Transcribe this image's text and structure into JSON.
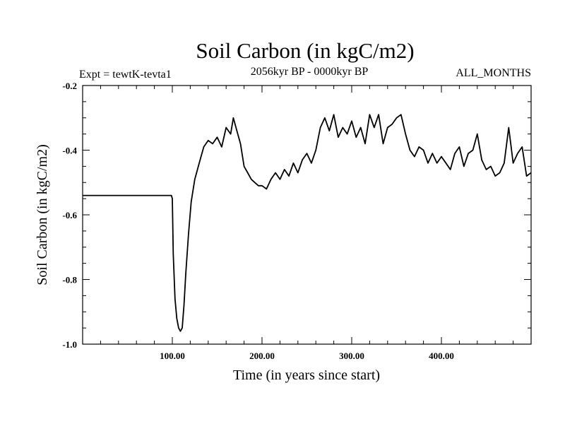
{
  "chart_data": {
    "type": "line",
    "title": "Soil Carbon (in kgC/m2)",
    "subtitle_left": "Expt = tewtK-tevta1",
    "subtitle_center": "2056kyr BP - 0000kyr BP",
    "subtitle_right": "ALL_MONTHS",
    "xlabel": "Time (in years since start)",
    "ylabel": "Soil Carbon (in kgC/m2)",
    "xlim": [
      0,
      500
    ],
    "ylim": [
      -1.0,
      -0.2
    ],
    "x_ticks": [
      100,
      200,
      300,
      400
    ],
    "x_tick_labels": [
      "100.00",
      "200.00",
      "300.00",
      "400.00"
    ],
    "y_ticks": [
      -1.0,
      -0.8,
      -0.6,
      -0.4,
      -0.2
    ],
    "y_tick_labels": [
      "-1.0",
      "-0.8",
      "-0.6",
      "-0.4",
      "-0.2"
    ],
    "series": [
      {
        "name": "Soil Carbon",
        "color": "#000000",
        "x": [
          0,
          99,
          100,
          101,
          103,
          105,
          107,
          109,
          111,
          113,
          115,
          118,
          121,
          125,
          130,
          135,
          140,
          145,
          150,
          155,
          160,
          165,
          168,
          172,
          176,
          180,
          184,
          188,
          192,
          196,
          200,
          205,
          210,
          215,
          220,
          225,
          230,
          235,
          240,
          245,
          250,
          255,
          260,
          265,
          270,
          275,
          280,
          285,
          290,
          295,
          300,
          305,
          310,
          315,
          320,
          325,
          330,
          335,
          340,
          345,
          350,
          355,
          360,
          365,
          370,
          375,
          380,
          385,
          390,
          395,
          400,
          405,
          410,
          415,
          420,
          425,
          430,
          435,
          440,
          445,
          450,
          455,
          460,
          465,
          470,
          475,
          480,
          485,
          490,
          495,
          500
        ],
        "values": [
          -0.54,
          -0.54,
          -0.55,
          -0.72,
          -0.86,
          -0.92,
          -0.95,
          -0.96,
          -0.95,
          -0.88,
          -0.78,
          -0.66,
          -0.56,
          -0.49,
          -0.44,
          -0.39,
          -0.37,
          -0.38,
          -0.36,
          -0.39,
          -0.33,
          -0.35,
          -0.3,
          -0.34,
          -0.38,
          -0.45,
          -0.47,
          -0.49,
          -0.5,
          -0.51,
          -0.51,
          -0.52,
          -0.49,
          -0.47,
          -0.49,
          -0.46,
          -0.48,
          -0.44,
          -0.47,
          -0.43,
          -0.41,
          -0.44,
          -0.4,
          -0.33,
          -0.3,
          -0.34,
          -0.29,
          -0.36,
          -0.33,
          -0.35,
          -0.31,
          -0.36,
          -0.33,
          -0.38,
          -0.29,
          -0.33,
          -0.29,
          -0.38,
          -0.33,
          -0.32,
          -0.3,
          -0.29,
          -0.35,
          -0.4,
          -0.42,
          -0.39,
          -0.4,
          -0.44,
          -0.41,
          -0.44,
          -0.42,
          -0.44,
          -0.46,
          -0.41,
          -0.39,
          -0.45,
          -0.41,
          -0.4,
          -0.35,
          -0.43,
          -0.46,
          -0.45,
          -0.48,
          -0.47,
          -0.44,
          -0.33,
          -0.44,
          -0.41,
          -0.39,
          -0.48,
          -0.47
        ]
      }
    ],
    "grid": false
  }
}
